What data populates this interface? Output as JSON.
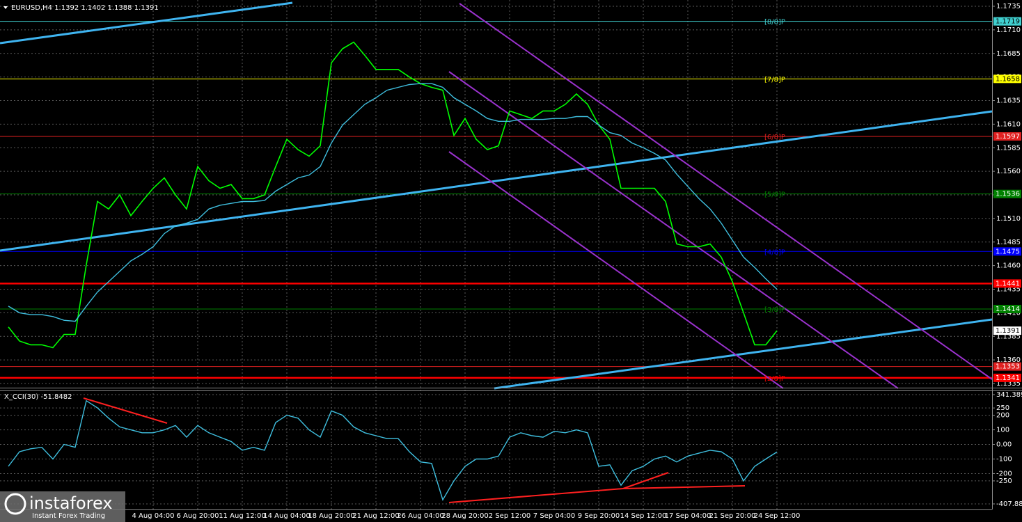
{
  "chart_data": [
    {
      "type": "line",
      "title": "EURUSD,H4  1.1392 1.1402 1.1388 1.1391",
      "categories": [
        null,
        null,
        null,
        null,
        null,
        null,
        null,
        null,
        null,
        null,
        null,
        null,
        null,
        "4 Aug 04:00",
        null,
        null,
        null,
        "6 Aug 20:00",
        null,
        null,
        null,
        "11 Aug 12:00",
        null,
        null,
        null,
        "14 Aug 04:00",
        null,
        null,
        null,
        "18 Aug 20:00",
        null,
        null,
        null,
        "21 Aug 12:00",
        null,
        null,
        null,
        "26 Aug 04:00",
        null,
        null,
        null,
        "28 Aug 20:00",
        null,
        null,
        null,
        "2 Sep 12:00",
        null,
        null,
        null,
        "7 Sep 04:00",
        null,
        null,
        null,
        "9 Sep 20:00",
        null,
        null,
        null,
        "14 Sep 12:00",
        null,
        null,
        null,
        "17 Sep 04:00",
        null,
        null,
        null,
        "21 Sep 20:00",
        null,
        null,
        null,
        "24 Sep 12:00"
      ],
      "series": [
        {
          "color": "#00ff00",
          "values": [
            1.1395,
            1.138,
            1.1376,
            1.1376,
            1.1373,
            1.1387,
            1.1387,
            1.1461,
            1.1528,
            1.152,
            1.1535,
            1.1513,
            1.1528,
            1.1542,
            1.1553,
            1.1535,
            1.152,
            1.1565,
            1.155,
            1.1542,
            1.1546,
            1.1531,
            1.1531,
            1.1535,
            1.1565,
            1.1594,
            1.1583,
            1.1576,
            1.1587,
            1.1675,
            1.169,
            1.1697,
            1.1683,
            1.1668,
            1.1668,
            1.1668,
            1.166,
            1.1653,
            1.1649,
            1.1646,
            1.1598,
            1.1616,
            1.1594,
            1.1583,
            1.1587,
            1.1624,
            1.162,
            1.1616,
            1.1624,
            1.1624,
            1.1631,
            1.1642,
            1.1631,
            1.1609,
            1.1594,
            1.1542,
            1.1542,
            1.1542,
            1.1542,
            1.1528,
            1.1483,
            1.148,
            1.148,
            1.1483,
            1.1469,
            1.1443,
            1.141,
            1.1376,
            1.1376,
            1.1391
          ]
        },
        {
          "color": "#3fbfdf",
          "values": [
            1.1417,
            1.141,
            1.1408,
            1.1408,
            1.1406,
            1.1402,
            1.1401,
            1.1417,
            1.1432,
            1.1443,
            1.1454,
            1.1465,
            1.1472,
            1.148,
            1.1494,
            1.1502,
            1.1505,
            1.1509,
            1.152,
            1.1524,
            1.1526,
            1.1528,
            1.1528,
            1.1529,
            1.1539,
            1.1546,
            1.1553,
            1.1556,
            1.1565,
            1.159,
            1.1609,
            1.162,
            1.1631,
            1.1638,
            1.1646,
            1.1649,
            1.1652,
            1.1653,
            1.1653,
            1.1649,
            1.1638,
            1.1631,
            1.1624,
            1.1616,
            1.1613,
            1.1613,
            1.1615,
            1.1615,
            1.1615,
            1.1616,
            1.1616,
            1.1618,
            1.1618,
            1.1609,
            1.1601,
            1.1598,
            1.159,
            1.1585,
            1.1579,
            1.1572,
            1.1557,
            1.1544,
            1.1531,
            1.152,
            1.1505,
            1.1487,
            1.1469,
            1.1458,
            1.1446,
            1.1435
          ]
        }
      ],
      "ylim": [
        1.1335,
        1.1735
      ],
      "yticks": [
        1.1735,
        {
          "value": 1.171,
          "label": "1.1710"
        },
        1.1685,
        {
          "value": 1.166,
          "label": "1.1660"
        },
        1.1635,
        {
          "value": 1.161,
          "label": "1.1610"
        },
        1.1585,
        {
          "value": 1.156,
          "label": "1.1560"
        },
        1.1535,
        {
          "value": 1.151,
          "label": "1.1510"
        },
        1.1485,
        {
          "value": 1.146,
          "label": "1.1460"
        },
        1.1435,
        {
          "value": 1.141,
          "label": "1.1410"
        },
        1.1385,
        {
          "value": 1.136,
          "label": "1.1360"
        },
        1.1335
      ],
      "grid": true,
      "levels": [
        {
          "value": 1.1719,
          "color": "#40d0d0",
          "label": "[8/8]P"
        },
        {
          "value": 1.1658,
          "color": "#ffff00",
          "label": "[7/8]P"
        },
        {
          "value": 1.1597,
          "color": "#e02020",
          "label": "[6/8]P"
        },
        {
          "value": 1.1536,
          "color": "#008000",
          "label": "[5/8]P"
        },
        {
          "value": 1.1475,
          "color": "#0000ff",
          "label": "[4/8]P"
        },
        {
          "value": 1.1441,
          "color": "#ff0000",
          "thick": true
        },
        {
          "value": 1.1414,
          "color": "#008000",
          "label": "[3/8]P"
        },
        {
          "value": 1.1353,
          "color": "#e02020"
        },
        {
          "value": 1.1341,
          "color": "#ff0000",
          "thick": true,
          "label": "[2/8]P"
        }
      ]
    },
    {
      "type": "line",
      "title": "X_CCI(30) -51.8482",
      "series": [
        {
          "color": "#3fbfdf",
          "values": [
            -150,
            -50,
            -30,
            -20,
            -100,
            0,
            -20,
            300,
            250,
            180,
            120,
            100,
            80,
            80,
            100,
            130,
            50,
            130,
            80,
            50,
            20,
            -40,
            -20,
            -40,
            150,
            200,
            180,
            100,
            50,
            230,
            200,
            120,
            80,
            60,
            40,
            40,
            -50,
            -120,
            -130,
            -380,
            -250,
            -150,
            -100,
            -100,
            -80,
            50,
            80,
            60,
            50,
            90,
            80,
            100,
            80,
            -150,
            -140,
            -280,
            -180,
            -150,
            -100,
            -80,
            -120,
            -80,
            -60,
            -40,
            -50,
            -100,
            -250,
            -150,
            -100,
            -52
          ]
        }
      ],
      "ylim": [
        -407.883,
        341.3899
      ],
      "yticks": [
        341.3899,
        250,
        200,
        100,
        {
          "value": 0,
          "label": "0.00"
        },
        -100,
        -200,
        -250,
        -407.883
      ],
      "grid": true
    }
  ],
  "watermark": {
    "brand": "instaforex",
    "tagline": "Instant Forex Trading"
  }
}
